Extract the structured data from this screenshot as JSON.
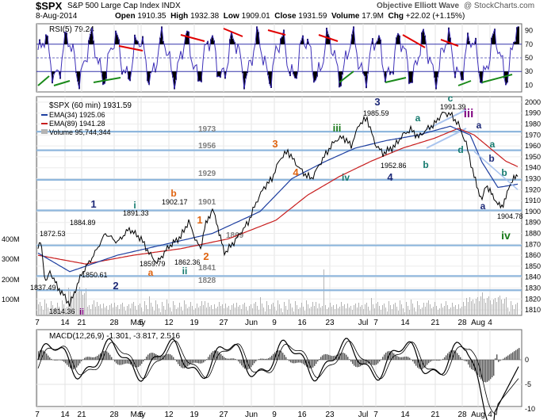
{
  "header": {
    "symbol": "$SPX",
    "name": "S&P 500 Large Cap Index INDX",
    "date": "8-Aug-2014",
    "open_label": "Open",
    "open": "1910.35",
    "high_label": "High",
    "high": "1932.38",
    "low_label": "Low",
    "low": "1909.01",
    "close_label": "Close",
    "close": "1931.59",
    "volume_label": "Volume",
    "volume": "17.9M",
    "chg_label": "Chg",
    "chg": "+22.02 (+1.15%)",
    "brand": "Objective Elliott Wave",
    "watermark": "@ StockCharts.com"
  },
  "rsi": {
    "label": "RSI(5) 79.24",
    "ticks": [
      90,
      70,
      50,
      30,
      10
    ],
    "levels": [
      30,
      50,
      70
    ]
  },
  "price_legend": {
    "title": "$SPX (60 min) 1931.59",
    "ema34": "EMA(34) 1925.06",
    "ema89": "EMA(89) 1941.28",
    "volume": "Volume 95,744,344"
  },
  "macd": {
    "label": "MACD(12,26,9) -1.301, -3.817, 2.516",
    "ticks": [
      0,
      -5,
      -10
    ]
  },
  "colors": {
    "price": "#000000",
    "ema34": "#1e3fa0",
    "ema89": "#c81e1e",
    "rsi": "#3d2fb8",
    "level_line": "#8fb7dd",
    "volume": "#b4b4b4",
    "macd_hist": "#555555",
    "trend_red": "#e00000",
    "trend_green": "#1a8a1a",
    "channel": "#a9c4ee",
    "wave_navy": "#1e2a78",
    "wave_teal": "#157a6e",
    "wave_orange": "#e06410",
    "wave_purple": "#800080",
    "wave_green": "#1a7a1a",
    "level_text": "#808080"
  },
  "chart_data": {
    "type": "line",
    "y_axis": {
      "min": 1805,
      "max": 2005,
      "ticks": [
        2000,
        1990,
        1980,
        1970,
        1960,
        1950,
        1940,
        1930,
        1920,
        1910,
        1900,
        1890,
        1880,
        1870,
        1860,
        1850,
        1840,
        1830,
        1820,
        1810
      ]
    },
    "x_tick_labels": [
      "7",
      "14",
      "21",
      "28",
      "May",
      "5",
      "12",
      "19",
      "27",
      "Jun",
      "9",
      "16",
      "23",
      "Jul",
      "7",
      "14",
      "21",
      "28",
      "Aug",
      "4"
    ],
    "volume_axis_labels": [
      "400M",
      "300M",
      "200M",
      "100M"
    ],
    "horizontal_levels": [
      {
        "value": 1973,
        "label": "1973"
      },
      {
        "value": 1956,
        "label": "1956"
      },
      {
        "value": 1929,
        "label": "1929"
      },
      {
        "value": 1901,
        "label": "1901"
      },
      {
        "value": 1869,
        "label": "1869"
      },
      {
        "value": 1841,
        "label": "1841"
      },
      {
        "value": 1828,
        "label": "1828"
      }
    ],
    "price_annotations": [
      "1872.53",
      "1837.49",
      "1814.36",
      "1884.89",
      "1850.61",
      "1891.33",
      "1859.79",
      "1902.17",
      "1862.36",
      "1985.59",
      "1952.86",
      "1991.39",
      "1904.78"
    ],
    "wave_labels": [
      {
        "text": "ii",
        "color": "purple"
      },
      {
        "text": "1",
        "color": "navy"
      },
      {
        "text": "2",
        "color": "navy"
      },
      {
        "text": "i",
        "color": "teal"
      },
      {
        "text": "a",
        "color": "orange"
      },
      {
        "text": "b",
        "color": "orange"
      },
      {
        "text": "ii",
        "color": "teal"
      },
      {
        "text": "1",
        "color": "orange"
      },
      {
        "text": "2",
        "color": "orange"
      },
      {
        "text": "3",
        "color": "orange"
      },
      {
        "text": "4",
        "color": "orange"
      },
      {
        "text": "iii",
        "color": "green"
      },
      {
        "text": "iv",
        "color": "teal"
      },
      {
        "text": "3",
        "color": "navy"
      },
      {
        "text": "4",
        "color": "navy"
      },
      {
        "text": "a",
        "color": "teal"
      },
      {
        "text": "b",
        "color": "teal"
      },
      {
        "text": "c",
        "color": "teal"
      },
      {
        "text": "d",
        "color": "teal"
      },
      {
        "text": "iii",
        "color": "purple"
      },
      {
        "text": "a",
        "color": "navy"
      },
      {
        "text": "b",
        "color": "navy"
      },
      {
        "text": "a",
        "color": "teal"
      },
      {
        "text": "b",
        "color": "teal"
      },
      {
        "text": "a",
        "color": "navy"
      },
      {
        "text": "iv",
        "color": "green"
      }
    ],
    "series": [
      {
        "name": "$SPX (60 min)",
        "x": [
          0,
          3,
          6,
          8,
          11,
          15,
          20,
          25,
          30,
          40,
          55,
          70,
          85,
          100,
          115,
          130,
          140,
          150,
          165,
          180,
          190,
          200,
          205,
          210,
          215,
          220,
          225,
          230,
          235,
          245,
          255,
          265,
          275,
          285,
          295,
          305,
          315,
          325,
          335,
          345,
          355,
          365,
          375,
          385,
          395,
          405,
          415,
          425,
          435,
          450,
          460,
          470,
          480,
          490,
          500,
          510,
          520,
          530,
          540,
          550,
          555,
          560,
          565,
          570,
          575,
          580,
          585,
          590,
          595,
          600,
          605
        ],
        "y": [
          1866,
          1872,
          1858,
          1840,
          1837,
          1845,
          1838,
          1830,
          1826,
          1815,
          1843,
          1860,
          1880,
          1872,
          1884,
          1875,
          1862,
          1853,
          1868,
          1877,
          1891,
          1872,
          1866,
          1885,
          1894,
          1902,
          1891,
          1876,
          1862,
          1870,
          1880,
          1890,
          1908,
          1922,
          1930,
          1948,
          1955,
          1944,
          1935,
          1930,
          1943,
          1955,
          1965,
          1968,
          1960,
          1980,
          1985,
          1962,
          1953,
          1960,
          1970,
          1975,
          1968,
          1975,
          1980,
          1990,
          1989,
          1980,
          1962,
          1932,
          1920,
          1910,
          1925,
          1918,
          1913,
          1906,
          1905,
          1912,
          1925,
          1930,
          1932
        ]
      },
      {
        "name": "EMA(34)",
        "x": [
          0,
          40,
          100,
          160,
          220,
          280,
          320,
          360,
          400,
          440,
          480,
          520,
          545,
          560,
          580,
          605
        ],
        "y": [
          1862,
          1845,
          1860,
          1870,
          1880,
          1900,
          1930,
          1945,
          1958,
          1965,
          1970,
          1978,
          1970,
          1945,
          1922,
          1925
        ]
      },
      {
        "name": "EMA(89)",
        "x": [
          0,
          60,
          120,
          180,
          240,
          300,
          340,
          380,
          420,
          460,
          500,
          530,
          550,
          570,
          590,
          605
        ],
        "y": [
          1860,
          1852,
          1860,
          1866,
          1875,
          1892,
          1915,
          1932,
          1946,
          1958,
          1967,
          1976,
          1970,
          1958,
          1946,
          1941
        ]
      }
    ]
  }
}
